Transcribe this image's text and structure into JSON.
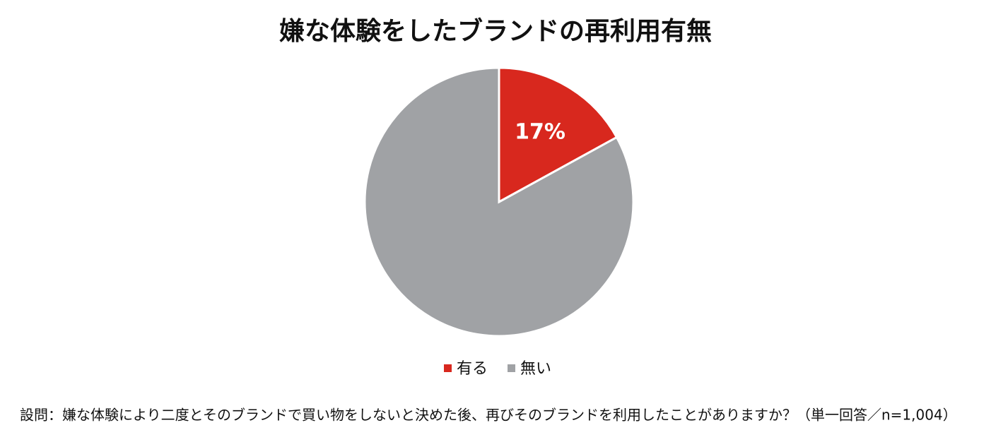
{
  "chart_data": {
    "type": "pie",
    "title": "嫌な体験をしたブランドの再利用有無",
    "categories": [
      "有る",
      "無い"
    ],
    "values": [
      17,
      83
    ],
    "value_labels": [
      "17%",
      null
    ],
    "colors": [
      "#d8281e",
      "#a0a2a5"
    ],
    "legend": "bottom",
    "note": "設問：嫌な体験により二度とそのブランドで買い物をしないと決めた後、再びそのブランドを利用したことがありますか？（単一回答／n=1,004）"
  }
}
